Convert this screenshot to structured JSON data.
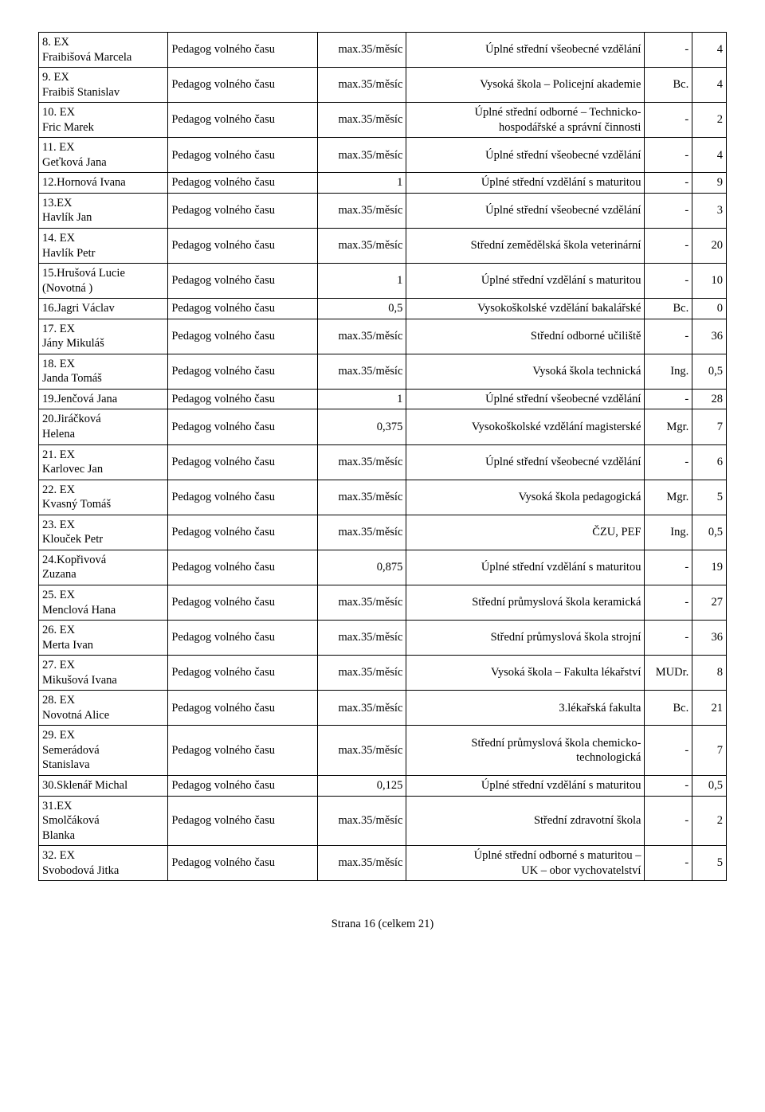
{
  "footer": "Strana 16 (celkem 21)",
  "rows": [
    {
      "name": "8. EX\nFraibišová Marcela",
      "role": "Pedagog volného času",
      "load": "max.35/měsíc",
      "qual": "Úplné střední všeobecné vzdělání",
      "title": "-",
      "years": "4"
    },
    {
      "name": "9. EX\nFraibiš Stanislav",
      "role": "Pedagog volného času",
      "load": "max.35/měsíc",
      "qual": "Vysoká škola – Policejní akademie",
      "title": "Bc.",
      "years": "4"
    },
    {
      "name": "10. EX\nFric Marek",
      "role": "Pedagog volného času",
      "load": "max.35/měsíc",
      "qual": "Úplné střední odborné – Technicko-\nhospodářské a správní činnosti",
      "title": "-",
      "years": "2"
    },
    {
      "name": "11. EX\nGeťková Jana",
      "role": "Pedagog volného času",
      "load": "max.35/měsíc",
      "qual": "Úplné střední všeobecné vzdělání",
      "title": "-",
      "years": "4"
    },
    {
      "name": "12.Hornová Ivana",
      "role": "Pedagog volného času",
      "load": "1",
      "qual": "Úplné střední vzdělání s maturitou",
      "title": "-",
      "years": "9"
    },
    {
      "name": "13.EX\nHavlík Jan",
      "role": "Pedagog volného času",
      "load": "max.35/měsíc",
      "qual": "Úplné střední všeobecné vzdělání",
      "title": "-",
      "years": "3"
    },
    {
      "name": "14. EX\nHavlík Petr",
      "role": "Pedagog volného času",
      "load": "max.35/měsíc",
      "qual": "Střední zemědělská škola veterinární",
      "title": "-",
      "years": "20"
    },
    {
      "name": "15.Hrušová Lucie\n(Novotná )",
      "role": "Pedagog volného času",
      "load": "1",
      "qual": "Úplné střední vzdělání s maturitou",
      "title": "-",
      "years": "10"
    },
    {
      "name": "16.Jagri Václav",
      "role": "Pedagog volného času",
      "load": "0,5",
      "qual": "Vysokoškolské vzdělání bakalářské",
      "title": "Bc.",
      "years": "0"
    },
    {
      "name": "17. EX\nJány Mikuláš",
      "role": "Pedagog volného času",
      "load": "max.35/měsíc",
      "qual": "Střední odborné učiliště",
      "title": "-",
      "years": "36"
    },
    {
      "name": "18. EX\nJanda Tomáš",
      "role": "Pedagog volného času",
      "load": "max.35/měsíc",
      "qual": "Vysoká škola technická",
      "title": "Ing.",
      "years": "0,5"
    },
    {
      "name": "19.Jenčová Jana",
      "role": "Pedagog volného času",
      "load": "1",
      "qual": "Úplné střední všeobecné vzdělání",
      "title": "-",
      "years": "28"
    },
    {
      "name": "20.Jiráčková\nHelena",
      "role": "Pedagog volného času",
      "load": "0,375",
      "qual": "Vysokoškolské vzdělání magisterské",
      "title": "Mgr.",
      "years": "7"
    },
    {
      "name": "21. EX\nKarlovec Jan",
      "role": "Pedagog volného času",
      "load": "max.35/měsíc",
      "qual": "Úplné střední všeobecné vzdělání",
      "title": "-",
      "years": "6"
    },
    {
      "name": "22. EX\nKvasný Tomáš",
      "role": "Pedagog volného času",
      "load": "max.35/měsíc",
      "qual": "Vysoká škola pedagogická",
      "title": "Mgr.",
      "years": "5"
    },
    {
      "name": "23. EX\nKlouček Petr",
      "role": "Pedagog volného času",
      "load": "max.35/měsíc",
      "qual": "ČZU, PEF",
      "title": "Ing.",
      "years": "0,5"
    },
    {
      "name": "24.Kopřivová\nZuzana",
      "role": "Pedagog volného času",
      "load": "0,875",
      "qual": "Úplné střední vzdělání s maturitou",
      "title": "-",
      "years": "19"
    },
    {
      "name": "25. EX\nMenclová Hana",
      "role": "Pedagog volného času",
      "load": "max.35/měsíc",
      "qual": "Střední průmyslová škola keramická",
      "title": "-",
      "years": "27"
    },
    {
      "name": "26. EX\nMerta Ivan",
      "role": "Pedagog volného času",
      "load": "max.35/měsíc",
      "qual": "Střední průmyslová škola strojní",
      "title": "-",
      "years": "36"
    },
    {
      "name": "27. EX\nMikušová Ivana",
      "role": "Pedagog volného času",
      "load": "max.35/měsíc",
      "qual": "Vysoká škola – Fakulta lékařství",
      "title": "MUDr.",
      "years": "8"
    },
    {
      "name": "28. EX\nNovotná Alice",
      "role": "Pedagog volného času",
      "load": "max.35/měsíc",
      "qual": "3.lékařská fakulta",
      "title": "Bc.",
      "years": "21"
    },
    {
      "name": "29. EX\nSemerádová\nStanislava",
      "role": "Pedagog volného času",
      "load": "max.35/měsíc",
      "qual": "Střední průmyslová škola chemicko-\ntechnologická",
      "title": "-",
      "years": "7"
    },
    {
      "name": "30.Sklenář Michal",
      "role": "Pedagog volného času",
      "load": "0,125",
      "qual": "Úplné střední vzdělání s maturitou",
      "title": "-",
      "years": "0,5"
    },
    {
      "name": "31.EX\nSmolčáková\nBlanka",
      "role": "Pedagog volného času",
      "load": "max.35/měsíc",
      "qual": "Střední zdravotní škola",
      "title": "-",
      "years": "2"
    },
    {
      "name": "32. EX\nSvobodová Jitka",
      "role": "Pedagog volného času",
      "load": "max.35/měsíc",
      "qual": "Úplné střední odborné s maturitou –\nUK – obor vychovatelství",
      "title": "-",
      "years": "5"
    }
  ]
}
